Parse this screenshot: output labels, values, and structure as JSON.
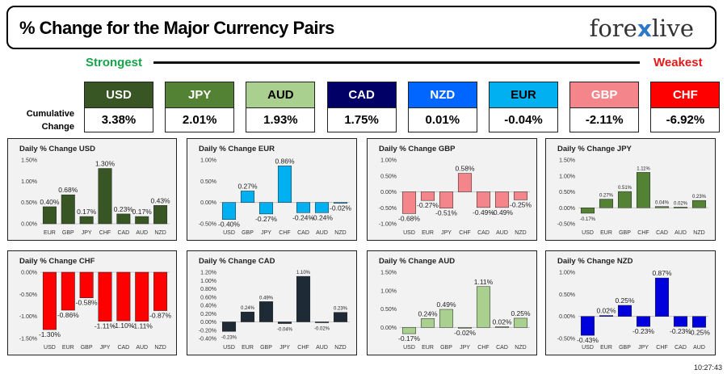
{
  "header": {
    "title": "% Change for the Major Currency Pairs",
    "logo_left": "fore",
    "logo_x": "x",
    "logo_right": "live"
  },
  "strength_bar": {
    "strongest": "Strongest",
    "weakest": "Weakest"
  },
  "cumulative_label": [
    "Cumulative",
    "Change"
  ],
  "currencies": [
    {
      "code": "USD",
      "change": "3.38%",
      "bg": "#375623",
      "fg": "#ffffff"
    },
    {
      "code": "JPY",
      "change": "2.01%",
      "bg": "#548235",
      "fg": "#ffffff"
    },
    {
      "code": "AUD",
      "change": "1.93%",
      "bg": "#a9d08e",
      "fg": "#000000"
    },
    {
      "code": "CAD",
      "change": "1.75%",
      "bg": "#000066",
      "fg": "#ffffff"
    },
    {
      "code": "NZD",
      "change": "0.01%",
      "bg": "#0066ff",
      "fg": "#ffffff"
    },
    {
      "code": "EUR",
      "change": "-0.04%",
      "bg": "#00b0f0",
      "fg": "#000000"
    },
    {
      "code": "GBP",
      "change": "-2.11%",
      "bg": "#f4858a",
      "fg": "#ffffff"
    },
    {
      "code": "CHF",
      "change": "-6.92%",
      "bg": "#ff0000",
      "fg": "#ffffff"
    }
  ],
  "chart_data": [
    {
      "type": "bar",
      "title": "Daily % Change USD",
      "color": "#375623",
      "categories": [
        "EUR",
        "GBP",
        "JPY",
        "CHF",
        "CAD",
        "AUD",
        "NZD"
      ],
      "values": [
        0.4,
        0.68,
        0.17,
        1.3,
        0.23,
        0.17,
        0.43
      ],
      "labels": [
        "0.40%",
        "0.68%",
        "0.17%",
        "1.30%",
        "0.23%",
        "0.17%",
        "0.43%"
      ],
      "yticks": [
        "0.00%",
        "0.50%",
        "1.00%",
        "1.50%"
      ],
      "ylim": [
        0,
        1.5
      ]
    },
    {
      "type": "bar",
      "title": "Daily % Change EUR",
      "color": "#00b0f0",
      "categories": [
        "USD",
        "GBP",
        "JPY",
        "CHF",
        "CAD",
        "AUD",
        "NZD"
      ],
      "values": [
        -0.4,
        0.27,
        -0.27,
        0.86,
        -0.24,
        -0.24,
        -0.02
      ],
      "labels": [
        "-0.40%",
        "0.27%",
        "-0.27%",
        "0.86%",
        "-0.24%",
        "-0.24%",
        "-0.02%"
      ],
      "yticks": [
        "-0.50%",
        "0.00%",
        "0.50%",
        "1.00%"
      ],
      "ylim": [
        -0.5,
        1.0
      ]
    },
    {
      "type": "bar",
      "title": "Daily % Change GBP",
      "color": "#f4858a",
      "categories": [
        "USD",
        "EUR",
        "JPY",
        "CHF",
        "CAD",
        "AUD",
        "NZD"
      ],
      "values": [
        -0.68,
        -0.27,
        -0.51,
        0.58,
        -0.49,
        -0.49,
        -0.25
      ],
      "labels": [
        "-0.68%",
        "-0.27%",
        "-0.51%",
        "0.58%",
        "-0.49%",
        "-0.49%",
        "-0.25%"
      ],
      "yticks": [
        "-1.00%",
        "-0.50%",
        "0.00%",
        "0.50%",
        "1.00%"
      ],
      "ylim": [
        -1.0,
        1.0
      ]
    },
    {
      "type": "bar",
      "title": "Daily % Change JPY",
      "color": "#548235",
      "categories": [
        "USD",
        "EUR",
        "GBP",
        "CHF",
        "CAD",
        "AUD",
        "NZD"
      ],
      "values": [
        -0.17,
        0.27,
        0.51,
        1.11,
        0.04,
        0.02,
        0.23
      ],
      "labels": [
        "-0.17%",
        "0.27%",
        "0.51%",
        "1.11%",
        "0.04%",
        "0.02%",
        "0.23%"
      ],
      "yticks": [
        "-0.50%",
        "0.00%",
        "0.50%",
        "1.00%",
        "1.50%"
      ],
      "ylim": [
        -0.5,
        1.5
      ]
    },
    {
      "type": "bar",
      "title": "Daily % Change CHF",
      "color": "#ff0000",
      "categories": [
        "USD",
        "EUR",
        "GBP",
        "JPY",
        "CAD",
        "AUD",
        "NZD"
      ],
      "values": [
        -1.3,
        -0.86,
        -0.58,
        -1.11,
        -1.1,
        -1.11,
        -0.87
      ],
      "labels": [
        "-1.30%",
        "-0.86%",
        "-0.58%",
        "-1.11%",
        "-1.10%",
        "-1.11%",
        "-0.87%"
      ],
      "yticks": [
        "-1.50%",
        "-1.00%",
        "-0.50%",
        "0.00%"
      ],
      "ylim": [
        -1.5,
        0
      ]
    },
    {
      "type": "bar",
      "title": "Daily % Change CAD",
      "color": "#1e2a36",
      "categories": [
        "USD",
        "EUR",
        "GBP",
        "JPY",
        "CHF",
        "AUD",
        "NZD"
      ],
      "values": [
        -0.23,
        0.24,
        0.49,
        -0.04,
        1.1,
        -0.02,
        0.23
      ],
      "labels": [
        "-0.23%",
        "0.24%",
        "0.49%",
        "-0.04%",
        "1.10%",
        "-0.02%",
        "0.23%"
      ],
      "yticks": [
        "-0.40%",
        "-0.20%",
        "0.00%",
        "0.20%",
        "0.40%",
        "0.60%",
        "0.80%",
        "1.00%",
        "1.20%"
      ],
      "ylim": [
        -0.4,
        1.2
      ]
    },
    {
      "type": "bar",
      "title": "Daily % Change AUD",
      "color": "#a9d08e",
      "categories": [
        "USD",
        "EUR",
        "GBP",
        "JPY",
        "CHF",
        "CAD",
        "NZD"
      ],
      "values": [
        -0.17,
        0.24,
        0.49,
        -0.02,
        1.11,
        0.02,
        0.25
      ],
      "labels": [
        "-0.17%",
        "0.24%",
        "0.49%",
        "-0.02%",
        "1.11%",
        "0.02%",
        "0.25%"
      ],
      "yticks": [
        "0.00%",
        "0.50%",
        "1.00%",
        "1.50%"
      ],
      "ylim": [
        -0.3,
        1.5
      ]
    },
    {
      "type": "bar",
      "title": "Daily % Change NZD",
      "color": "#0000dd",
      "categories": [
        "USD",
        "EUR",
        "GBP",
        "JPY",
        "CHF",
        "CAD",
        "AUD"
      ],
      "values": [
        -0.43,
        0.02,
        0.25,
        -0.23,
        0.87,
        -0.23,
        -0.25
      ],
      "labels": [
        "-0.43%",
        "0.02%",
        "0.25%",
        "-0.23%",
        "0.87%",
        "-0.23%",
        "-0.25%"
      ],
      "yticks": [
        "-0.50%",
        "0.00%",
        "0.50%",
        "1.00%"
      ],
      "ylim": [
        -0.5,
        1.0
      ]
    }
  ],
  "timestamp": "10:27:43"
}
